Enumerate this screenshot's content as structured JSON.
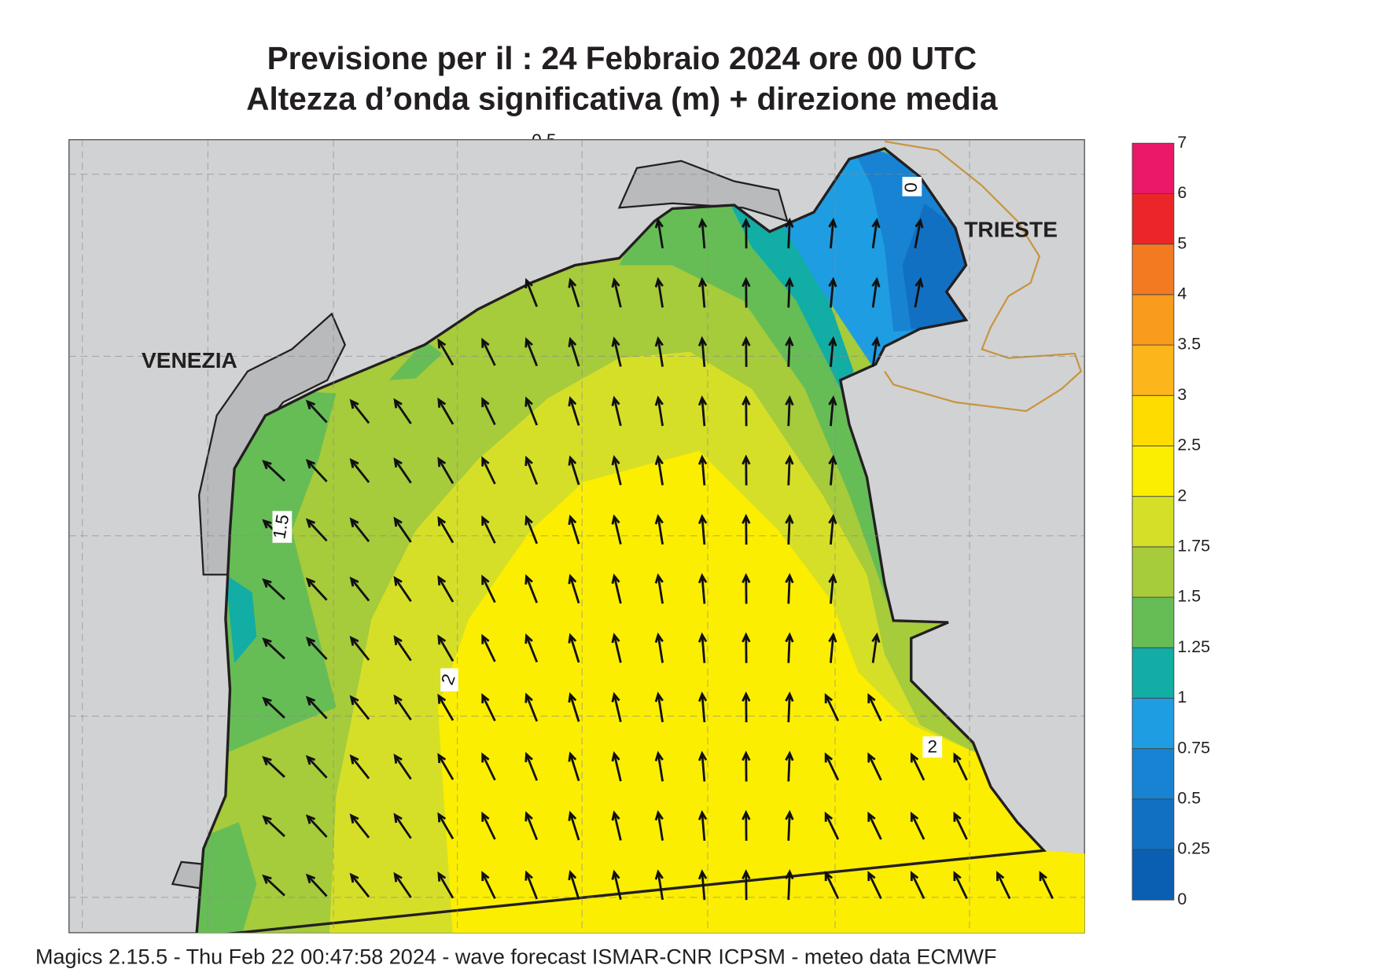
{
  "header": {
    "title_line1": "Previsione per il  :  24  Febbraio 2024   ore 00 UTC",
    "title_line2": "Altezza d’onda significativa (m) + direzione media"
  },
  "map": {
    "places": [
      "VENEZIA",
      "TRIESTE"
    ],
    "contour_labels": [
      "1.5",
      "2",
      "2",
      "0",
      "0.5"
    ]
  },
  "colorbar": {
    "levels": [
      0,
      0.25,
      0.5,
      0.75,
      1,
      1.25,
      1.5,
      1.75,
      2,
      2.5,
      3,
      3.5,
      4,
      5,
      6,
      7
    ],
    "colors": [
      "#0b5fb3",
      "#1270c2",
      "#1783d2",
      "#1e9de2",
      "#12ada5",
      "#67bd55",
      "#a6cb3b",
      "#d6df28",
      "#fcee00",
      "#ffdc00",
      "#fdb51c",
      "#f99b1d",
      "#f47a22",
      "#ec2628",
      "#ea1866"
    ]
  },
  "footer": {
    "text": "Magics 2.15.5 - Thu Feb 22 00:47:58 2024 - wave forecast  ISMAR-CNR  ICPSM - meteo data    ECMWF"
  }
}
